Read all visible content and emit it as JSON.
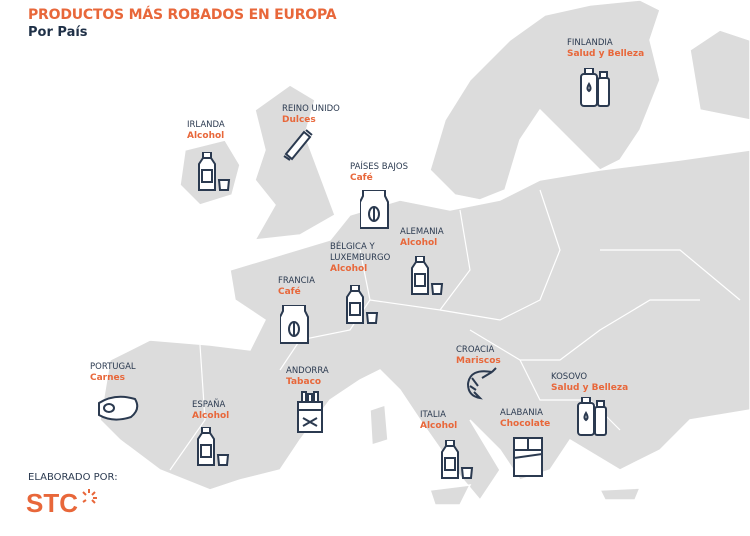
{
  "header": {
    "title": "PRODUCTOS MÁS ROBADOS EN EUROPA",
    "subtitle": "Por País"
  },
  "colors": {
    "accent": "#e8673a",
    "text": "#1f3047",
    "land": "#dcdcdc",
    "border": "#ffffff"
  },
  "countries": [
    {
      "country": "FINLANDIA",
      "product": "Salud y Belleza",
      "icon": "cosmetics-icon"
    },
    {
      "country": "IRLANDA",
      "product": "Alcohol",
      "icon": "bottle-glass-icon"
    },
    {
      "country": "REINO UNIDO",
      "product": "Dulces",
      "icon": "candy-bar-icon"
    },
    {
      "country": "PAÍSES BAJOS",
      "product": "Café",
      "icon": "coffee-bag-icon"
    },
    {
      "country": "ALEMANIA",
      "product": "Alcohol",
      "icon": "bottle-glass-icon"
    },
    {
      "country": "BÉLGICA Y",
      "country2": "LUXEMBURGO",
      "product": "Alcohol",
      "icon": "bottle-glass-icon"
    },
    {
      "country": "FRANCIA",
      "product": "Café",
      "icon": "coffee-bag-icon"
    },
    {
      "country": "PORTUGAL",
      "product": "Carnes",
      "icon": "steak-icon"
    },
    {
      "country": "ANDORRA",
      "product": "Tabaco",
      "icon": "cigarette-pack-icon"
    },
    {
      "country": "ESPAÑA",
      "product": "Alcohol",
      "icon": "bottle-glass-icon"
    },
    {
      "country": "CROACIA",
      "product": "Mariscos",
      "icon": "shrimp-icon"
    },
    {
      "country": "KOSOVO",
      "product": "Salud y Belleza",
      "icon": "cosmetics-icon"
    },
    {
      "country": "ITALIA",
      "product": "Alcohol",
      "icon": "bottle-glass-icon"
    },
    {
      "country": "ALABANIA",
      "product": "Chocolate",
      "icon": "chocolate-bar-icon"
    }
  ],
  "footer": {
    "credit": "ELABORADO POR:",
    "logo": "STC"
  }
}
